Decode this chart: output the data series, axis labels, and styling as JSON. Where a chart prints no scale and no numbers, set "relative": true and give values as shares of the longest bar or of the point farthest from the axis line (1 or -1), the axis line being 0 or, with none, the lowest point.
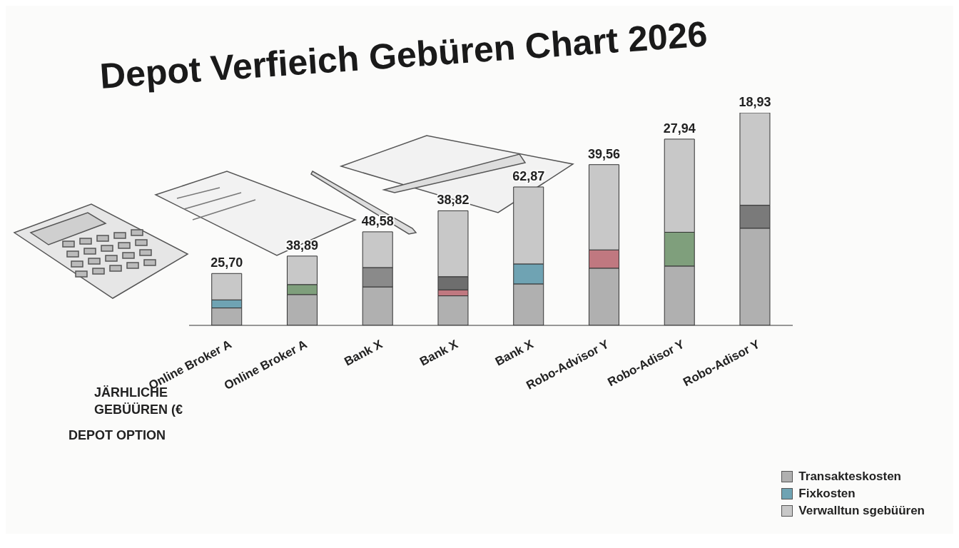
{
  "chart_data": {
    "type": "bar",
    "title": "Depot Verfieich Gebüren Chart 2026",
    "xlabel": "DEPOT OPTION",
    "ylabel": "JÄRHLICHE GEBÜÜREN (€",
    "categories": [
      "Online Broker A",
      "Online Broker A",
      "Bank X",
      "Bank X",
      "Bank X",
      "Robo-Advisor Y",
      "Robo-Adisor Y",
      "Robo-Adisor Y"
    ],
    "relative": true,
    "stacked": true,
    "legend": "bottom right",
    "annotations": [
      "25,70",
      "38,89",
      "48,58",
      "38,82",
      "62,87",
      "39,56",
      "27,94",
      "18,93"
    ],
    "series": [
      {
        "name": "Transakteskosten",
        "color": "#b0b0b0",
        "values": [
          0.082,
          0.145,
          0.181,
          0.139,
          0.195,
          0.269,
          0.279,
          0.457
        ]
      },
      {
        "name": "Fixkosten",
        "color": "#6fa3b3",
        "colors": [
          "#6fa3b3",
          "#7f9f7c",
          "#8a8a8a",
          "#c07880",
          "#6fa3b3",
          "#c07880",
          "#7f9f7c",
          "#7a7a7a"
        ],
        "values": [
          0.038,
          0.047,
          0.091,
          0.028,
          0.094,
          0.086,
          0.159,
          0.108
        ]
      },
      {
        "color": "#6e6e6e",
        "values": [
          0,
          0,
          0,
          0.062,
          0,
          0,
          0,
          0
        ]
      },
      {
        "name": "Verwalltun sgebüüren",
        "color": "#c8c8c8",
        "values": [
          0.124,
          0.134,
          0.168,
          0.31,
          0.362,
          0.401,
          0.438,
          0.435
        ]
      }
    ]
  }
}
